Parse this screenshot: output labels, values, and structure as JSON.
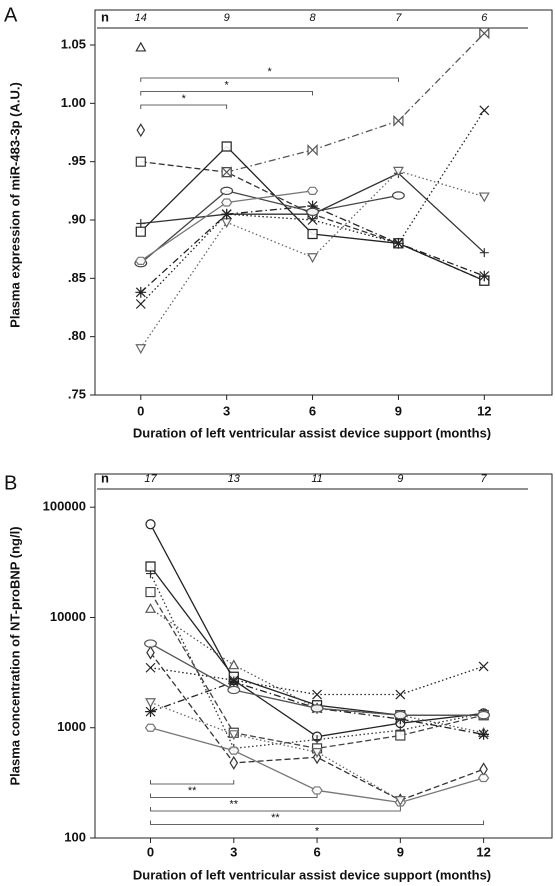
{
  "chart_data": [
    {
      "type": "line",
      "panel": "A",
      "n_label": "n",
      "n_values": [
        14,
        9,
        8,
        7,
        6
      ],
      "x": [
        0,
        3,
        6,
        9,
        12
      ],
      "xlim": [
        -1.6,
        14.4
      ],
      "xticks": [
        0,
        3,
        6,
        9,
        12
      ],
      "ylim": [
        0.75,
        1.08
      ],
      "log_scale": false,
      "yticks": [
        {
          "value": 0.75,
          "label": ".75"
        },
        {
          "value": 0.8,
          "label": ".80"
        },
        {
          "value": 0.85,
          "label": ".85"
        },
        {
          "value": 0.9,
          "label": ".90"
        },
        {
          "value": 0.95,
          "label": ".95"
        },
        {
          "value": 1.0,
          "label": "1.00"
        },
        {
          "value": 1.05,
          "label": "1.05"
        }
      ],
      "x_label": "Duration of left ventricular assist device support (months)",
      "y_label": "Plasma expression of miR-483-3p (A.U.)",
      "brackets": [
        {
          "x": [
            0,
            3
          ],
          "label": "*"
        },
        {
          "x": [
            0,
            6
          ],
          "label": "*"
        },
        {
          "x": [
            0,
            9
          ],
          "label": "*"
        }
      ],
      "series": [
        {
          "color": "#333333",
          "dash": "dashed",
          "marker": "square",
          "values": [
            0.95,
            0.941,
            0.905,
            0.88,
            0.848
          ]
        },
        {
          "color": "#555555",
          "dash": "dashdot",
          "marker": "bowtie",
          "values": [
            null,
            0.941,
            0.96,
            0.985,
            1.06
          ]
        },
        {
          "color": "#222222",
          "dash": "solid",
          "marker": "square",
          "values": [
            0.89,
            0.963,
            0.888,
            0.88,
            0.848
          ]
        },
        {
          "color": "#333333",
          "dash": "solid",
          "marker": "plus",
          "values": [
            0.897,
            0.905,
            0.905,
            0.94,
            0.872
          ]
        },
        {
          "color": "#666666",
          "dash": "dotted",
          "marker": "dtriangle",
          "values": [
            0.79,
            0.898,
            0.868,
            0.942,
            0.92
          ]
        },
        {
          "color": "#222222",
          "dash": "dotted",
          "marker": "x",
          "values": [
            0.828,
            0.905,
            0.9,
            0.88,
            0.994
          ]
        },
        {
          "color": "#222222",
          "dash": "dashdot",
          "marker": "star",
          "values": [
            0.838,
            0.905,
            0.912,
            0.88,
            0.852
          ]
        },
        {
          "color": "#444444",
          "dash": "solid",
          "marker": "ellipse",
          "values": [
            0.863,
            0.925,
            0.907,
            0.921,
            null
          ]
        },
        {
          "color": "#777777",
          "dash": "solid",
          "marker": "hexagon",
          "values": [
            0.865,
            0.915,
            0.925,
            null,
            null
          ]
        },
        {
          "color": "#333333",
          "dash": "solid",
          "marker": "triangle",
          "values": [
            1.048,
            null,
            null,
            null,
            null
          ]
        },
        {
          "color": "#333333",
          "dash": "solid",
          "marker": "diamond",
          "values": [
            0.977,
            null,
            null,
            null,
            null
          ]
        }
      ]
    },
    {
      "type": "line",
      "panel": "B",
      "n_label": "n",
      "n_values": [
        17,
        13,
        11,
        9,
        7
      ],
      "x": [
        0,
        3,
        6,
        9,
        12
      ],
      "xlim": [
        -2.0,
        14.5
      ],
      "xticks": [
        0,
        3,
        6,
        9,
        12
      ],
      "ylim": [
        100,
        200000
      ],
      "log_scale": true,
      "yticks": [
        100,
        1000,
        10000,
        100000
      ],
      "x_label": "Duration of left ventricular assist device support (months)",
      "y_label": "Plasma concentration of NT-proBNP (ng/l)",
      "brackets": [
        {
          "x": [
            0,
            3
          ],
          "label": "**"
        },
        {
          "x": [
            0,
            6
          ],
          "label": "**"
        },
        {
          "x": [
            0,
            9
          ],
          "label": "**"
        },
        {
          "x": [
            0,
            12
          ],
          "label": "*"
        }
      ],
      "series": [
        {
          "color": "#222222",
          "dash": "solid",
          "marker": "circle",
          "values": [
            70000,
            2700,
            830,
            1100,
            1350
          ]
        },
        {
          "color": "#333333",
          "dash": "dotted",
          "marker": "plus",
          "values": [
            25000,
            650,
            780,
            950,
            1350
          ]
        },
        {
          "color": "#222222",
          "dash": "solid",
          "marker": "square",
          "values": [
            29000,
            2900,
            1600,
            1300,
            1300
          ]
        },
        {
          "color": "#444444",
          "dash": "dashed",
          "marker": "square",
          "values": [
            17000,
            900,
            650,
            850,
            1300
          ]
        },
        {
          "color": "#555555",
          "dash": "dotted",
          "marker": "triangle",
          "values": [
            12000,
            3700,
            1500,
            1300,
            900
          ]
        },
        {
          "color": "#222222",
          "dash": "dotted",
          "marker": "x",
          "values": [
            3500,
            2700,
            2000,
            2000,
            3600
          ]
        },
        {
          "color": "#333333",
          "dash": "dashed",
          "marker": "diamond",
          "values": [
            4800,
            480,
            540,
            220,
            420
          ]
        },
        {
          "color": "#777777",
          "dash": "solid",
          "marker": "hexagon",
          "values": [
            1000,
            620,
            270,
            210,
            350
          ]
        },
        {
          "color": "#666666",
          "dash": "dotted",
          "marker": "dtriangle",
          "values": [
            1700,
            870,
            600,
            220,
            null
          ]
        },
        {
          "color": "#222222",
          "dash": "dashdot",
          "marker": "star",
          "values": [
            1400,
            2600,
            1500,
            1200,
            870
          ]
        },
        {
          "color": "#555555",
          "dash": "solid",
          "marker": "ellipse",
          "values": [
            5800,
            2200,
            1500,
            1300,
            1300
          ]
        }
      ]
    }
  ]
}
